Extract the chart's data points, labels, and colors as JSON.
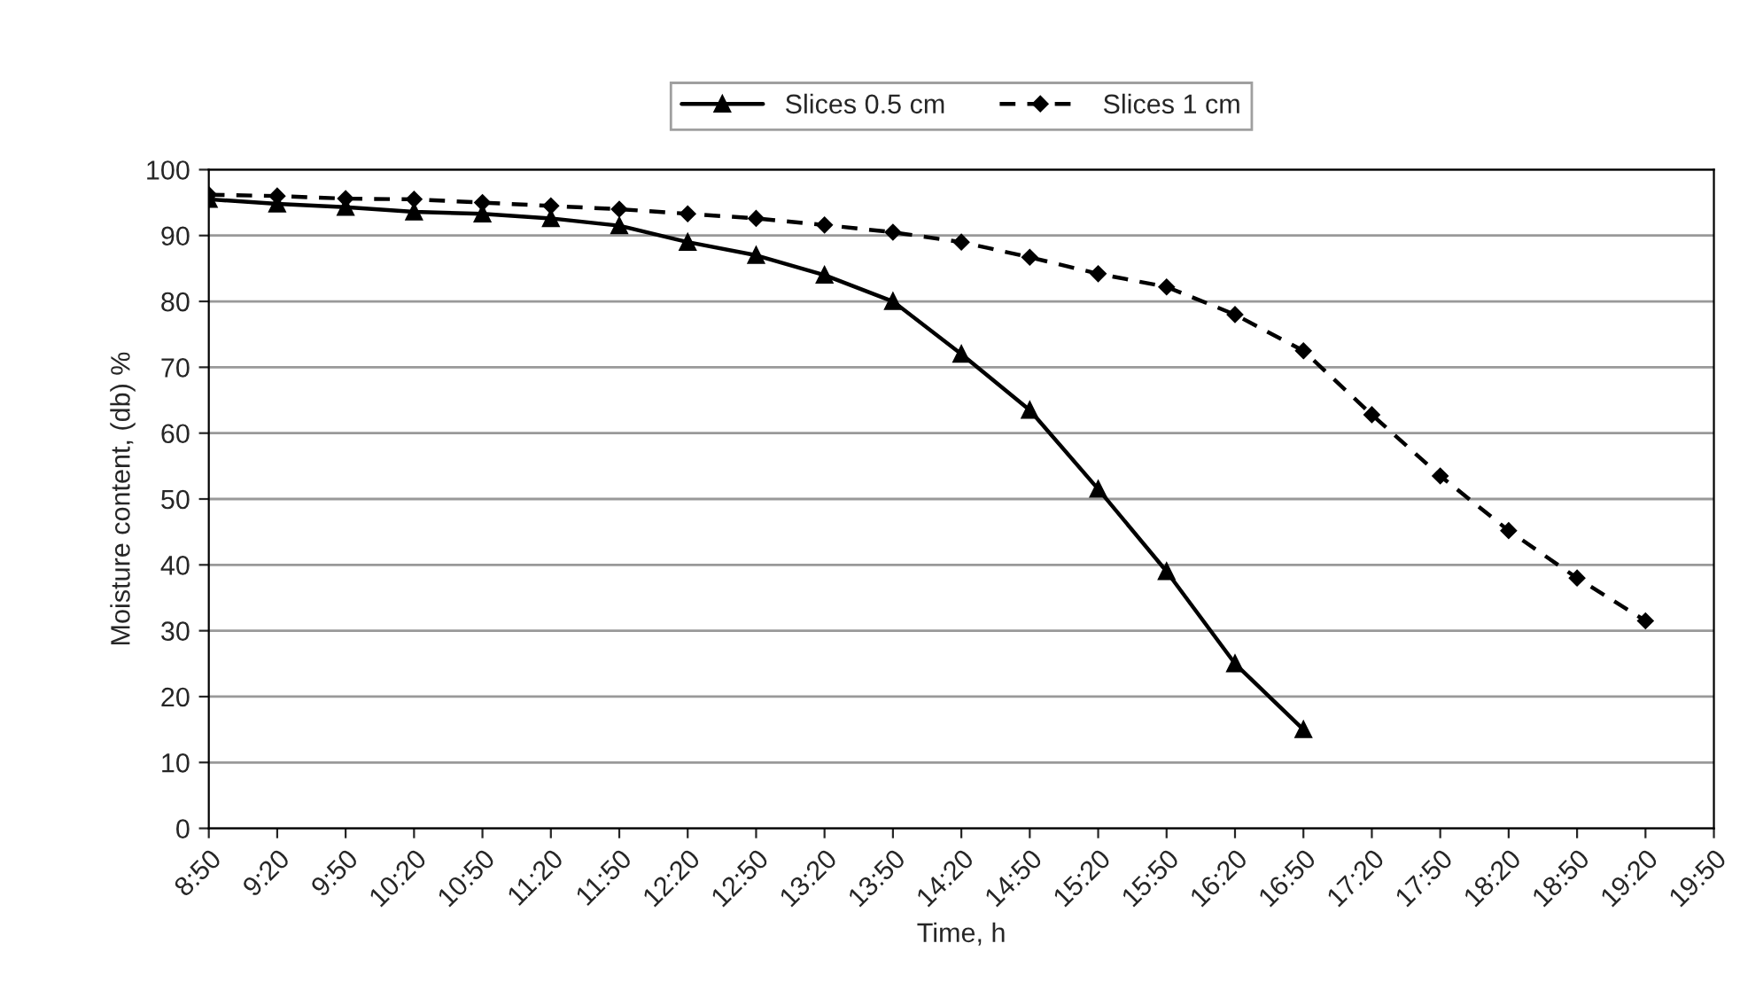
{
  "chart_data": {
    "type": "line",
    "xlabel": "Time, h",
    "ylabel": "Moisture content, (db) %",
    "categories": [
      "8:50",
      "9:20",
      "9:50",
      "10:20",
      "10:50",
      "11:20",
      "11:50",
      "12:20",
      "12:50",
      "13:20",
      "13:50",
      "14:20",
      "14:50",
      "15:20",
      "15:50",
      "16:20",
      "16:50",
      "17:20",
      "17:50",
      "18:20",
      "18:50",
      "19:20",
      "19:50"
    ],
    "series": [
      {
        "name": "Slices 0.5 cm",
        "color": "#000000",
        "marker": "triangle",
        "line_style": "solid",
        "values": [
          95.5,
          94.8,
          94.3,
          93.6,
          93.3,
          92.6,
          91.5,
          89,
          87,
          84,
          80,
          72,
          63.5,
          51.5,
          39,
          25,
          15,
          null,
          null,
          null,
          null,
          null,
          null
        ]
      },
      {
        "name": "Slices 1 cm",
        "color": "#000000",
        "marker": "diamond",
        "line_style": "dashed",
        "values": [
          96.2,
          96,
          95.6,
          95.5,
          95,
          94.5,
          94,
          93.3,
          92.6,
          91.6,
          90.5,
          89,
          86.7,
          84.2,
          82.2,
          78,
          72.5,
          62.8,
          53.5,
          45.2,
          38,
          31.5,
          null
        ]
      }
    ],
    "ylim": [
      0,
      100
    ],
    "yticks": [
      0,
      10,
      20,
      30,
      40,
      50,
      60,
      70,
      80,
      90,
      100
    ],
    "grid": "y",
    "legend": "top"
  }
}
